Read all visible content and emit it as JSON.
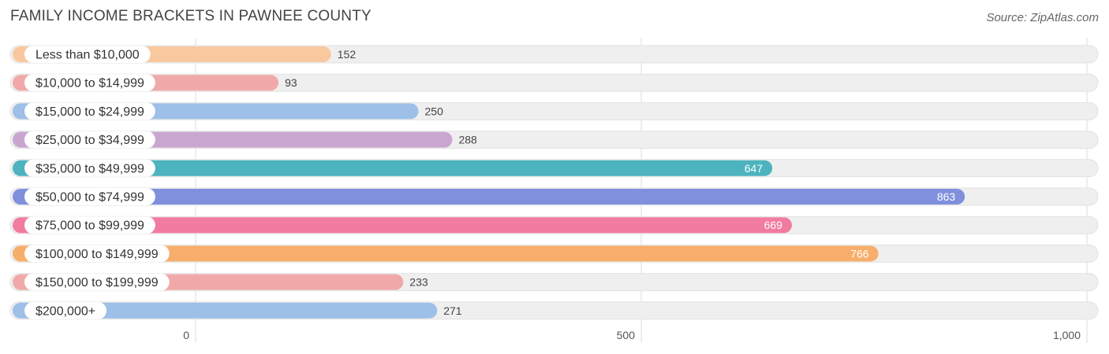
{
  "chart_data": {
    "type": "bar",
    "orientation": "horizontal",
    "title": "FAMILY INCOME BRACKETS IN PAWNEE COUNTY",
    "source": "Source: ZipAtlas.com",
    "categories": [
      "Less than $10,000",
      "$10,000 to $14,999",
      "$15,000 to $24,999",
      "$25,000 to $34,999",
      "$35,000 to $49,999",
      "$50,000 to $74,999",
      "$75,000 to $99,999",
      "$100,000 to $149,999",
      "$150,000 to $199,999",
      "$200,000+"
    ],
    "values": [
      152,
      93,
      250,
      288,
      647,
      863,
      669,
      766,
      233,
      271
    ],
    "value_labels": [
      "152",
      "93",
      "250",
      "288",
      "647",
      "863",
      "669",
      "766",
      "233",
      "271"
    ],
    "colors": [
      "#f9c89e",
      "#f0a9a8",
      "#9dbfe8",
      "#c9a6d0",
      "#4cb3bf",
      "#8090dd",
      "#f27ba0",
      "#f7ae6a",
      "#f0a9a8",
      "#9dbfe8"
    ],
    "xlim": [
      0,
      1000
    ],
    "xticks": [
      0,
      500,
      1000
    ],
    "xtick_labels": [
      "0",
      "500",
      "1,000"
    ],
    "xlabel": "",
    "ylabel": "",
    "grid": true
  }
}
